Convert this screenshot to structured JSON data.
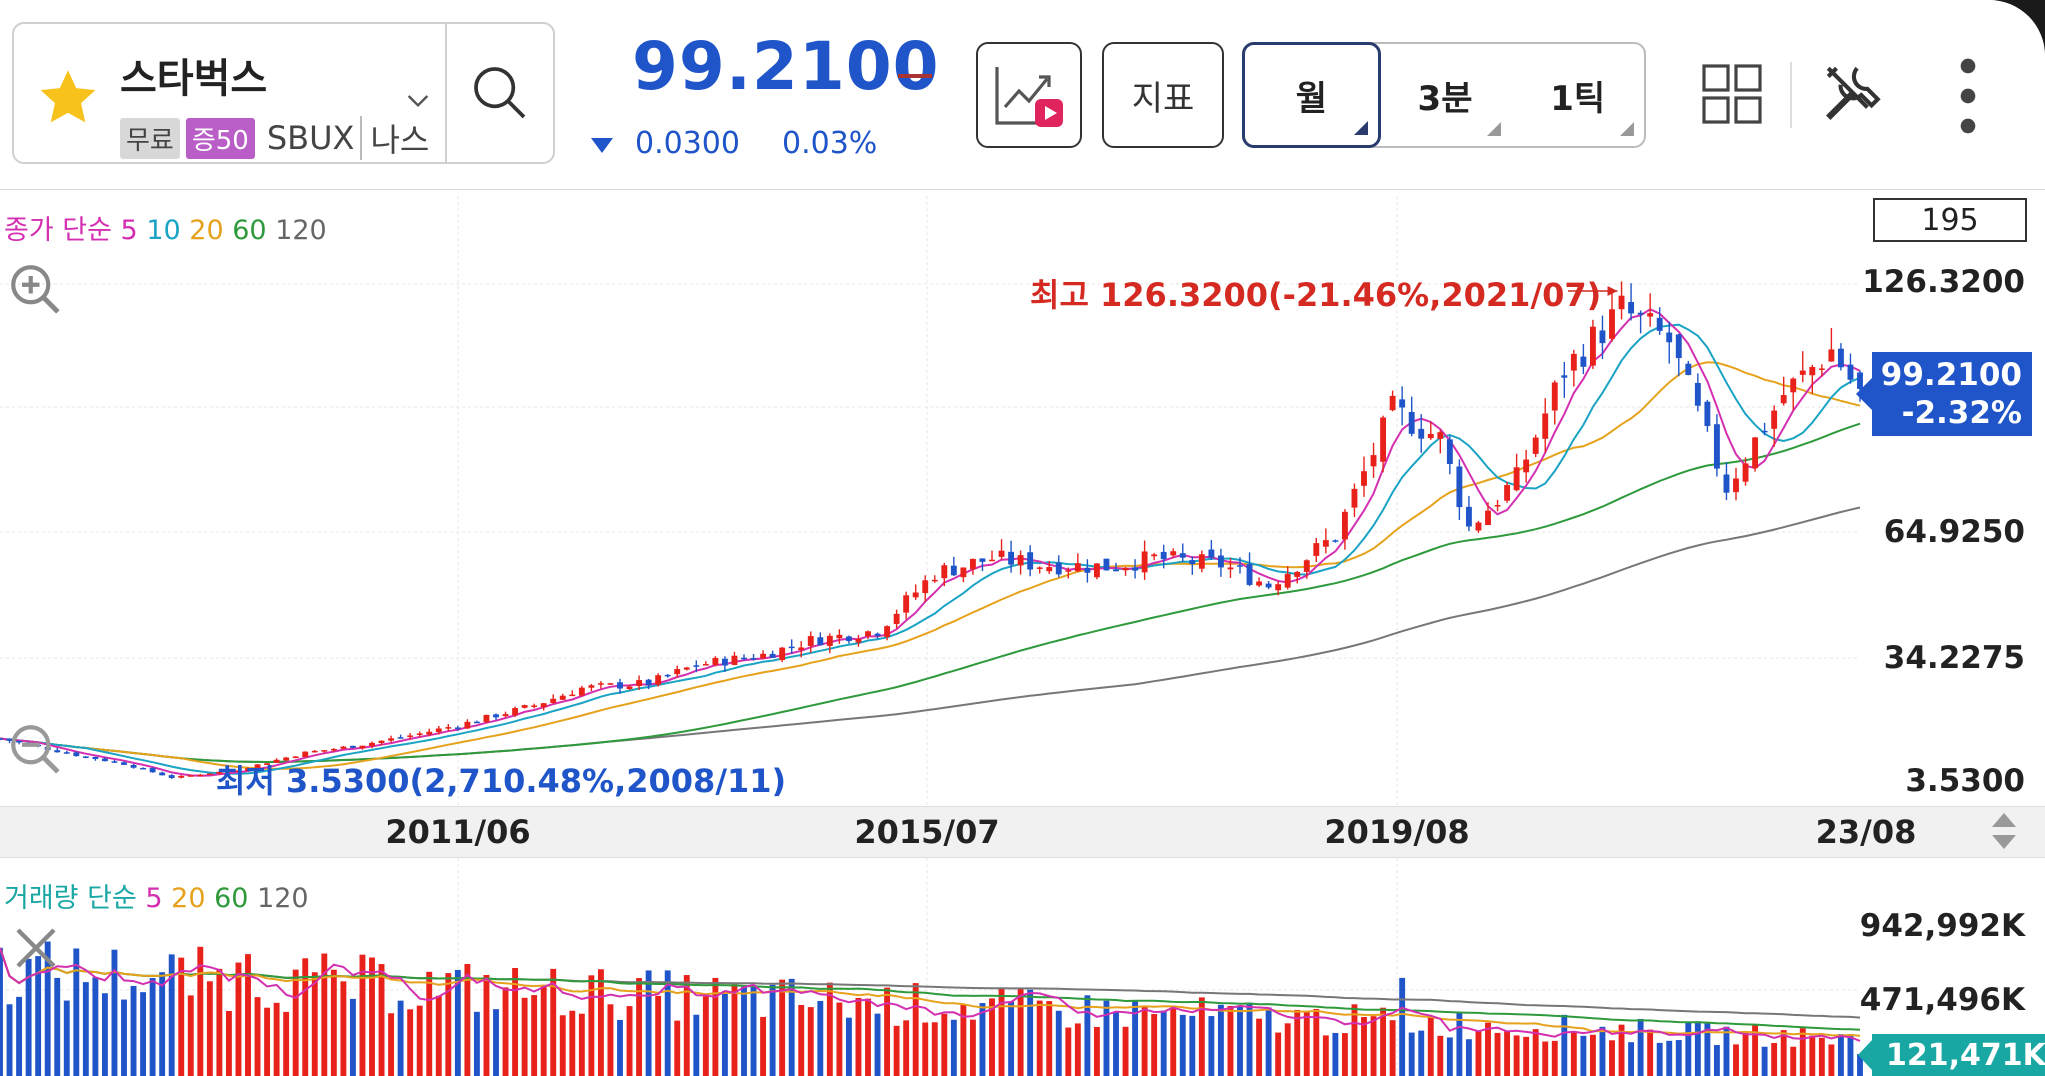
{
  "header": {
    "stock_name": "스타벅스",
    "tag_free": "무료",
    "tag_margin": "증50",
    "ticker": "SBUX",
    "market": "나스",
    "price": "99.2100",
    "change": "0.0300",
    "change_pct": "0.03%",
    "indicator_label": "지표",
    "periods": [
      {
        "label": "월",
        "selected": true
      },
      {
        "label": "3분",
        "selected": false
      },
      {
        "label": "1틱",
        "selected": false
      }
    ]
  },
  "colors": {
    "up": "#e8221b",
    "down": "#1f55c9",
    "ma5": "#d32fb0",
    "ma10": "#1aa3c4",
    "ma20": "#e6a21c",
    "ma60": "#2e9a3c",
    "ma120": "#777777",
    "vol_tag": "#19a7a4"
  },
  "price_legend": {
    "prefix": "종가 단순",
    "ma": [
      "5",
      "10",
      "20",
      "60",
      "120"
    ]
  },
  "volume_legend": {
    "prefix": "거래량 단순",
    "ma": [
      "5",
      "20",
      "60",
      "120"
    ]
  },
  "y_axis": {
    "top_box": "195",
    "labels": [
      "126.3200",
      "64.9250",
      "34.2275",
      "3.5300"
    ],
    "current_price": "99.2100",
    "current_pct": "-2.32%"
  },
  "annotations": {
    "high": "최고 126.3200(-21.46%,2021/07)",
    "low": "최저 3.5300(2,710.48%,2008/11)"
  },
  "x_axis": {
    "labels": [
      "2011/06",
      "2015/07",
      "2019/08",
      "23/08"
    ]
  },
  "volume_axis": {
    "labels": [
      "942,992K",
      "471,496K"
    ],
    "current": "121,471K"
  },
  "chart_data": [
    {
      "type": "candlestick",
      "interval": "monthly",
      "title": "",
      "ylim": [
        3.53,
        195
      ],
      "yticks": [
        126.32,
        64.925,
        34.2275,
        3.53
      ],
      "xticks": [
        "2011/06",
        "2015/07",
        "2019/08",
        "23/08"
      ],
      "high": {
        "value": 126.32,
        "date": "2021/07"
      },
      "low": {
        "value": 3.53,
        "date": "2008/11"
      },
      "last_close": 99.21,
      "close_path": [
        [
          "2007/05",
          14.3
        ],
        [
          "2008/01",
          10.2
        ],
        [
          "2008/06",
          8.0
        ],
        [
          "2008/11",
          4.6
        ],
        [
          "2009/06",
          6.6
        ],
        [
          "2010/01",
          10.8
        ],
        [
          "2010/06",
          12.4
        ],
        [
          "2011/01",
          15.5
        ],
        [
          "2011/06",
          18.2
        ],
        [
          "2012/01",
          22.5
        ],
        [
          "2012/06",
          26.8
        ],
        [
          "2013/01",
          28.0
        ],
        [
          "2013/06",
          32.5
        ],
        [
          "2014/01",
          35.0
        ],
        [
          "2014/06",
          38.5
        ],
        [
          "2015/01",
          41.0
        ],
        [
          "2015/07",
          55.0
        ],
        [
          "2016/01",
          58.5
        ],
        [
          "2016/06",
          57.0
        ],
        [
          "2017/01",
          56.5
        ],
        [
          "2017/06",
          58.5
        ],
        [
          "2018/01",
          57.0
        ],
        [
          "2018/06",
          52.0
        ],
        [
          "2019/01",
          64.0
        ],
        [
          "2019/07",
          95.0
        ],
        [
          "2019/12",
          88.0
        ],
        [
          "2020/03",
          66.0
        ],
        [
          "2020/08",
          78.0
        ],
        [
          "2021/01",
          105.0
        ],
        [
          "2021/07",
          120.0
        ],
        [
          "2021/12",
          112.0
        ],
        [
          "2022/06",
          76.0
        ],
        [
          "2022/12",
          99.0
        ],
        [
          "2023/05",
          110.0
        ],
        [
          "2023/08",
          99.21
        ]
      ],
      "ma_series": [
        {
          "name": "5"
        },
        {
          "name": "10"
        },
        {
          "name": "20"
        },
        {
          "name": "60"
        },
        {
          "name": "120"
        }
      ]
    },
    {
      "type": "bar",
      "title": "",
      "yticks": [
        "942,992K",
        "471,496K"
      ],
      "last_value": "121,471K",
      "ma_series": [
        {
          "name": "5"
        },
        {
          "name": "20"
        },
        {
          "name": "60"
        },
        {
          "name": "120"
        }
      ]
    }
  ]
}
